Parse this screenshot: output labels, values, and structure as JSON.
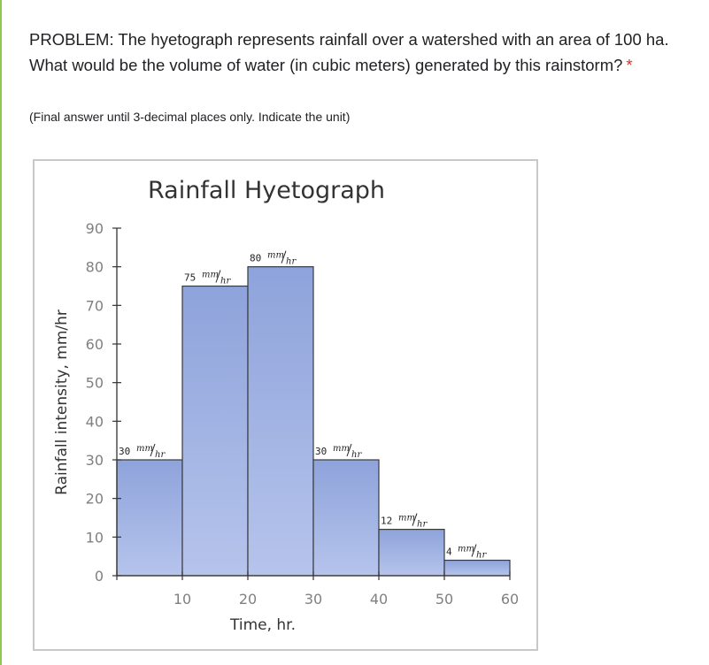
{
  "question": {
    "text": "PROBLEM: The hyetograph represents rainfall over a watershed with an area of 100 ha. What would be the volume of water (in cubic meters) generated by this rainstorm?",
    "required_marker": "*",
    "hint": "(Final answer until 3-decimal places only. Indicate the unit)"
  },
  "chart_data": {
    "type": "bar",
    "title": "Rainfall Hyetograph",
    "xlabel": "Time, hr.",
    "ylabel": "Rainfall intensity, mm/hr",
    "xlim": [
      0,
      60
    ],
    "ylim": [
      0,
      90
    ],
    "x_ticks": [
      10,
      20,
      30,
      40,
      50,
      60
    ],
    "y_ticks": [
      0,
      10,
      20,
      30,
      40,
      50,
      60,
      70,
      80,
      90
    ],
    "grid": false,
    "legend": "none",
    "bars": [
      {
        "x_start": 0,
        "x_end": 10,
        "value": 30,
        "label_value": "30",
        "label_unit_num": "mm",
        "label_unit_den": "hr"
      },
      {
        "x_start": 10,
        "x_end": 20,
        "value": 75,
        "label_value": "75",
        "label_unit_num": "mm",
        "label_unit_den": "hr"
      },
      {
        "x_start": 20,
        "x_end": 30,
        "value": 80,
        "label_value": "80",
        "label_unit_num": "mm",
        "label_unit_den": "hr"
      },
      {
        "x_start": 30,
        "x_end": 40,
        "value": 30,
        "label_value": "30",
        "label_unit_num": "mm",
        "label_unit_den": "hr"
      },
      {
        "x_start": 40,
        "x_end": 50,
        "value": 12,
        "label_value": "12",
        "label_unit_num": "mm",
        "label_unit_den": "hr"
      },
      {
        "x_start": 50,
        "x_end": 60,
        "value": 4,
        "label_value": "4",
        "label_unit_num": "mm",
        "label_unit_den": "hr"
      }
    ],
    "colors": {
      "bar_top": "#8ea3db",
      "bar_bottom": "#b6c4ec",
      "bar_edge": "#3a3a3a",
      "axis": "#333333",
      "tick_label": "#808080",
      "title": "#333333"
    }
  }
}
